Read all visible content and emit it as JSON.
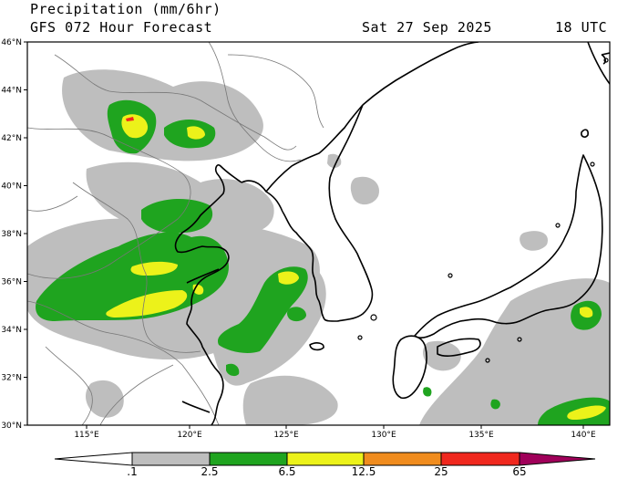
{
  "header": {
    "title": "Precipitation (mm/6hr)",
    "subtitle": "GFS 072 Hour Forecast",
    "valid_date": "Sat 27 Sep 2025",
    "valid_hour": "18 UTC"
  },
  "map": {
    "lat_labels": [
      "46°N",
      "44°N",
      "42°N",
      "40°N",
      "38°N",
      "36°N",
      "34°N",
      "32°N",
      "30°N"
    ],
    "lon_labels": [
      "115°E",
      "120°E",
      "125°E",
      "130°E",
      "135°E",
      "140°E"
    ]
  },
  "colorbar": {
    "labels": [
      ".1",
      "2.5",
      "6.5",
      "12.5",
      "25",
      "65"
    ],
    "colors": [
      "#ffffff",
      "#bebebe",
      "#1fa41f",
      "#ecf21a",
      "#f08c1e",
      "#f0281e",
      "#a0005a"
    ]
  },
  "palette": {
    "light": "#bebebe",
    "moderate": "#1fa41f",
    "heavy": "#ecf21a",
    "very_heavy": "#f08c1e",
    "extreme": "#f0281e"
  }
}
